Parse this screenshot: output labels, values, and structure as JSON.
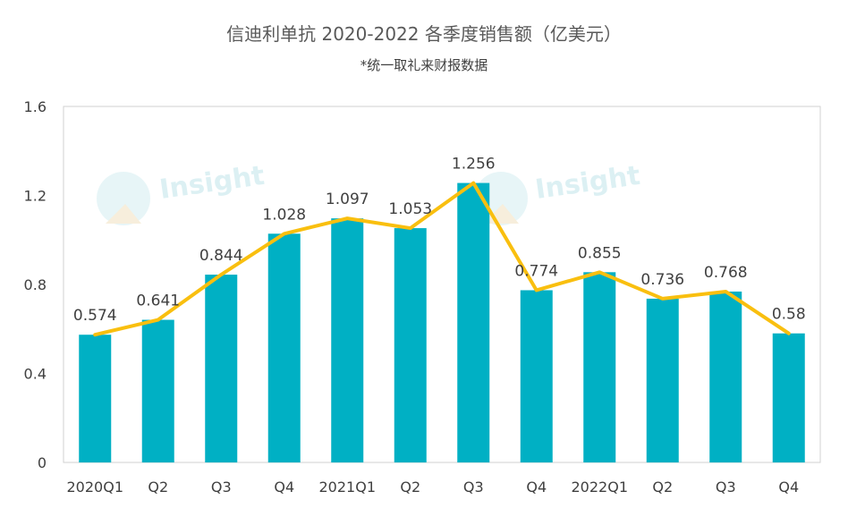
{
  "chart_data": {
    "type": "bar+line",
    "title": "信迪利单抗 2020-2022 各季度销售额（亿美元）",
    "subtitle": "*统一取礼来财报数据",
    "categories": [
      "2020Q1",
      "Q2",
      "Q3",
      "Q4",
      "2021Q1",
      "Q2",
      "Q3",
      "Q4",
      "2022Q1",
      "Q2",
      "Q3",
      "Q4"
    ],
    "values": [
      0.574,
      0.641,
      0.844,
      1.028,
      1.097,
      1.053,
      1.256,
      0.774,
      0.855,
      0.736,
      0.768,
      0.58
    ],
    "data_labels": [
      "0.574",
      "0.641",
      "0.844",
      "1.028",
      "1.097",
      "1.053",
      "1.256",
      "0.774",
      "0.855",
      "0.736",
      "0.768",
      "0.58"
    ],
    "yticks": [
      "0",
      "0.4",
      "0.8",
      "1.2",
      "1.6"
    ],
    "ylim": [
      0,
      1.6
    ],
    "grid": false,
    "legend": "none",
    "bar_color": "#00b0c4",
    "line_color": "#f9bf0f",
    "watermark": "Insight"
  }
}
